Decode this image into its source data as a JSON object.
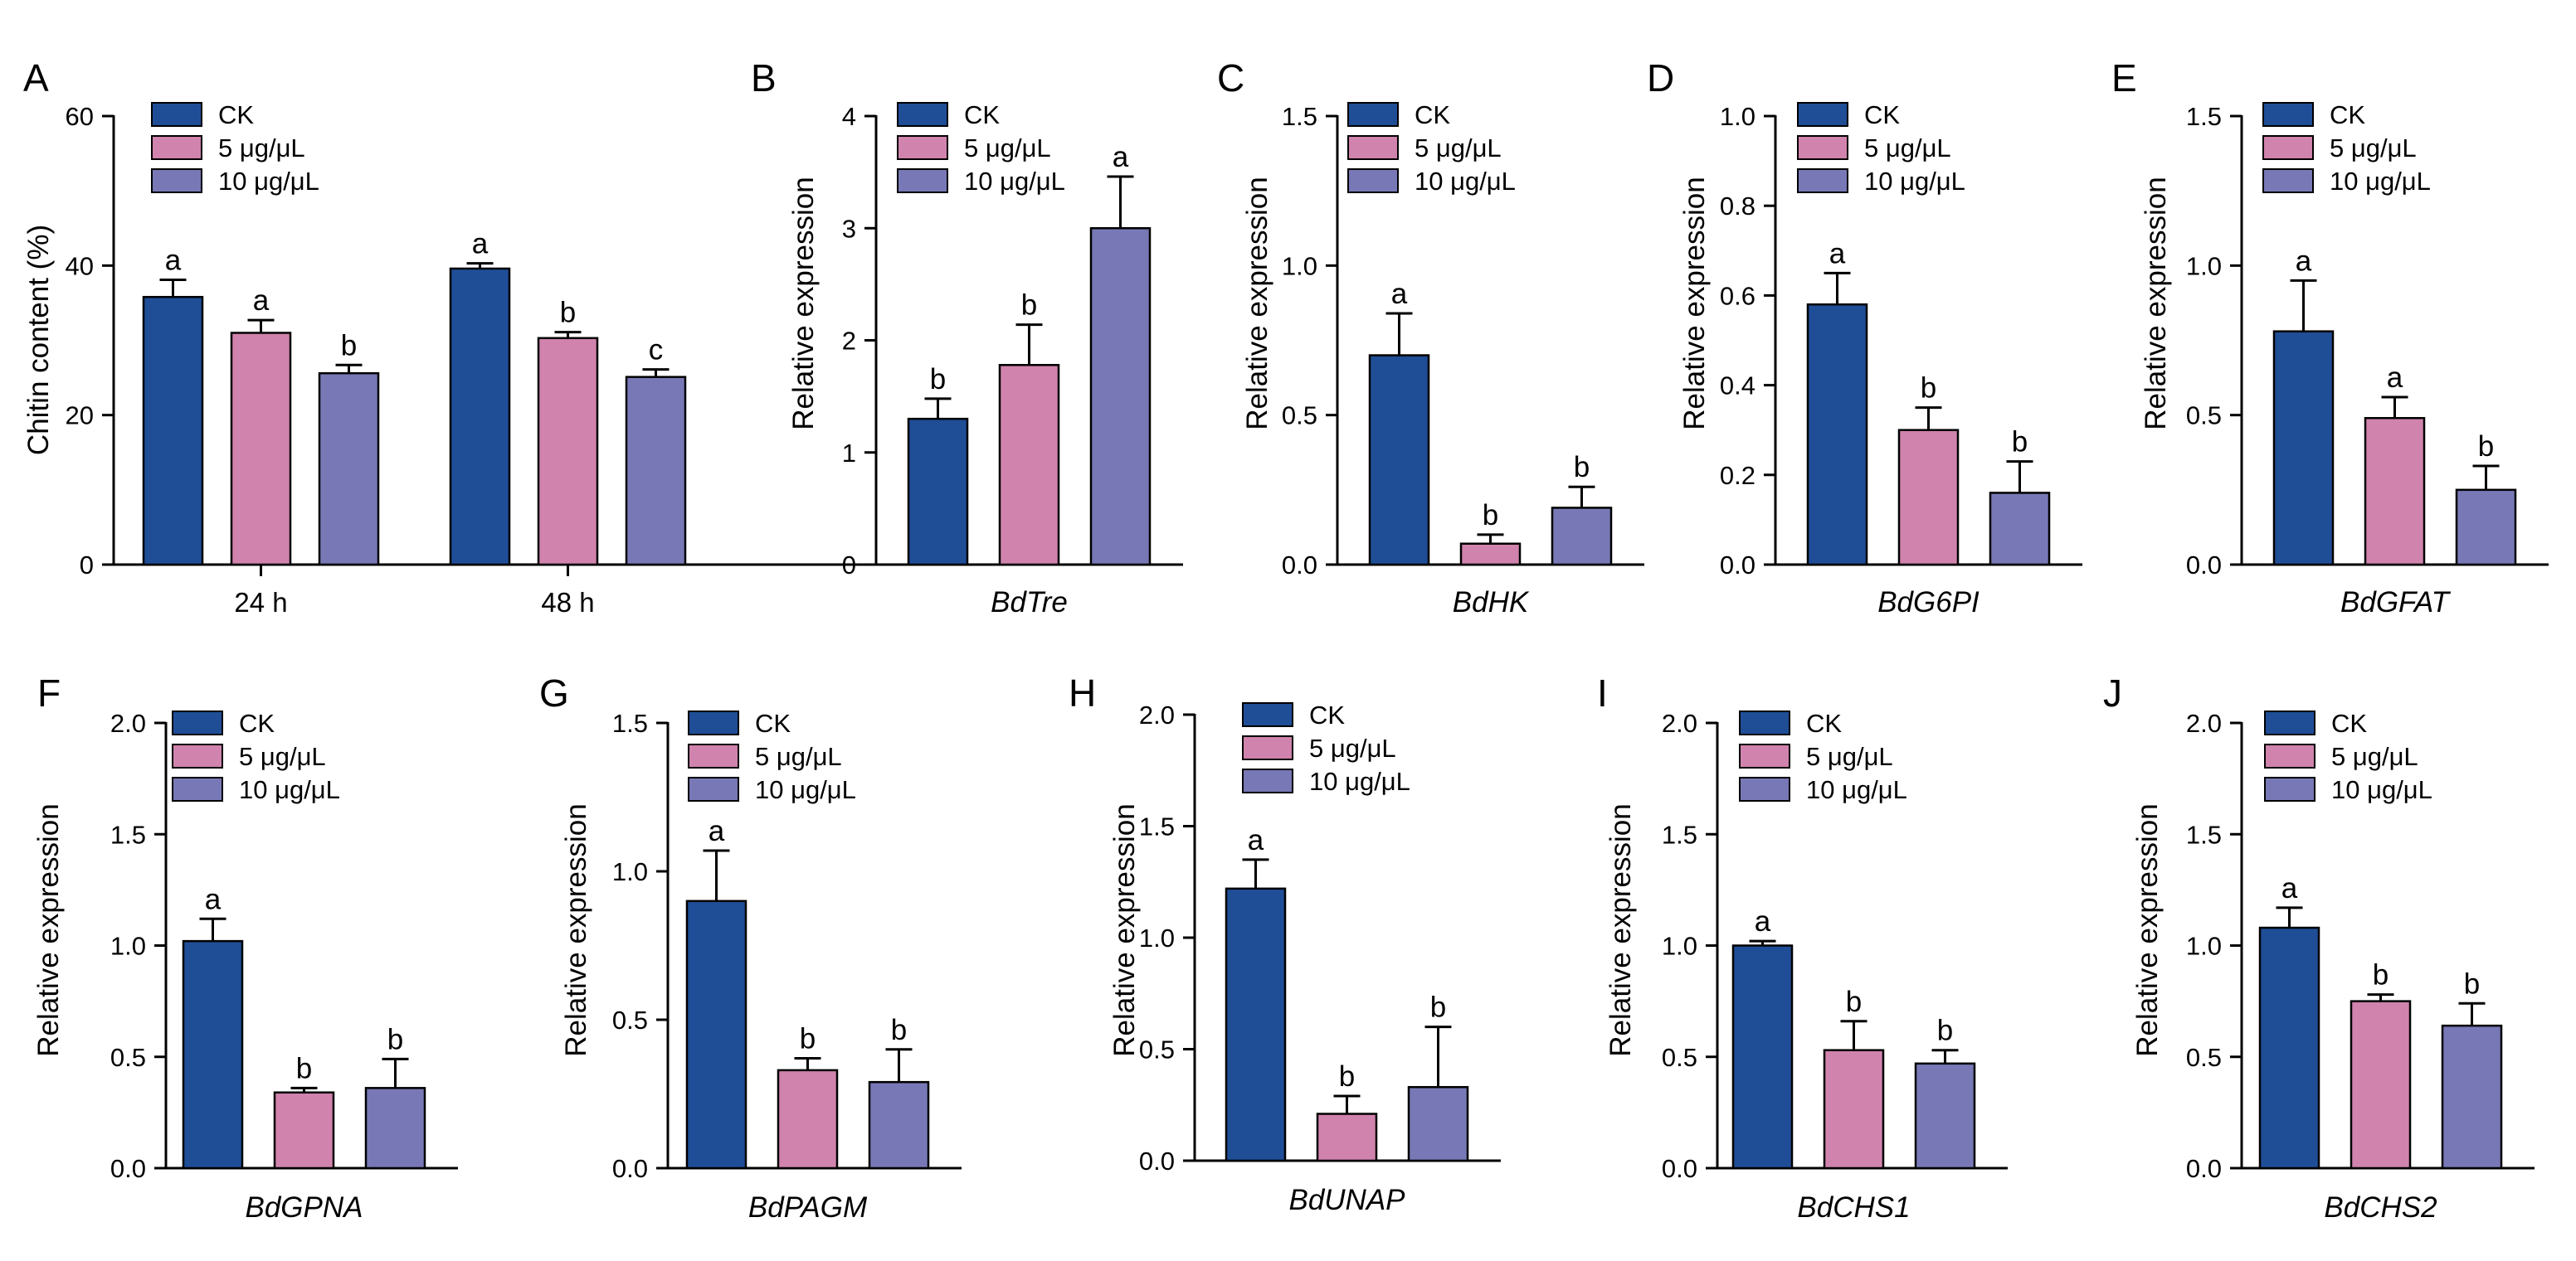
{
  "colors": {
    "ck": "#1f4e97",
    "low": "#d083ad",
    "high": "#7878b6",
    "ink": "#000000"
  },
  "legend": [
    "CK",
    "5 μg/μL",
    "10 μg/μL"
  ],
  "chart_data": [
    {
      "panel": "A",
      "type": "bar",
      "title": "",
      "xlabel": "",
      "ylabel": "Chitin content (%)",
      "ylim": [
        0,
        60
      ],
      "ticks": [
        0,
        20,
        40,
        60
      ],
      "tick_labels": [
        "0",
        "20",
        "40",
        "60"
      ],
      "categories": [
        "24 h",
        "48 h"
      ],
      "series": [
        {
          "name": "CK",
          "values": [
            35.8,
            39.6
          ],
          "errors": [
            2.3,
            0.7
          ],
          "letters": [
            "a",
            "a"
          ]
        },
        {
          "name": "5 μg/μL",
          "values": [
            31.0,
            30.3
          ],
          "errors": [
            1.7,
            0.8
          ],
          "letters": [
            "a",
            "b"
          ]
        },
        {
          "name": "10 μg/μL",
          "values": [
            25.6,
            25.1
          ],
          "errors": [
            1.1,
            1.0
          ],
          "letters": [
            "b",
            "c"
          ]
        }
      ]
    },
    {
      "panel": "B",
      "type": "bar",
      "gene": "BdTre",
      "ylabel": "Relative expression",
      "ylim": [
        0,
        4
      ],
      "ticks": [
        0,
        1,
        2,
        3,
        4
      ],
      "tick_labels": [
        "0",
        "1",
        "2",
        "3",
        "4"
      ],
      "categories": [
        "CK",
        "5 μg/μL",
        "10 μg/μL"
      ],
      "values": [
        1.3,
        1.78,
        3.0
      ],
      "errors": [
        0.18,
        0.36,
        0.46
      ],
      "letters": [
        "b",
        "b",
        "a"
      ]
    },
    {
      "panel": "C",
      "type": "bar",
      "gene": "BdHK",
      "ylabel": "Relative expression",
      "ylim": [
        0,
        1.5
      ],
      "ticks": [
        0,
        0.5,
        1.0,
        1.5
      ],
      "tick_labels": [
        "0.0",
        "0.5",
        "1.0",
        "1.5"
      ],
      "categories": [
        "CK",
        "5 μg/μL",
        "10 μg/μL"
      ],
      "values": [
        0.7,
        0.07,
        0.19
      ],
      "errors": [
        0.14,
        0.03,
        0.07
      ],
      "letters": [
        "a",
        "b",
        "b"
      ]
    },
    {
      "panel": "D",
      "type": "bar",
      "gene": "BdG6PI",
      "ylabel": "Relative expression",
      "ylim": [
        0,
        1.0
      ],
      "ticks": [
        0,
        0.2,
        0.4,
        0.6,
        0.8,
        1.0
      ],
      "tick_labels": [
        "0.0",
        "0.2",
        "0.4",
        "0.6",
        "0.8",
        "1.0"
      ],
      "categories": [
        "CK",
        "5 μg/μL",
        "10 μg/μL"
      ],
      "values": [
        0.58,
        0.3,
        0.16
      ],
      "errors": [
        0.07,
        0.05,
        0.07
      ],
      "letters": [
        "a",
        "b",
        "b"
      ]
    },
    {
      "panel": "E",
      "type": "bar",
      "gene": "BdGFAT",
      "ylabel": "Relative expression",
      "ylim": [
        0,
        1.5
      ],
      "ticks": [
        0,
        0.5,
        1.0,
        1.5
      ],
      "tick_labels": [
        "0.0",
        "0.5",
        "1.0",
        "1.5"
      ],
      "categories": [
        "CK",
        "5 μg/μL",
        "10 μg/μL"
      ],
      "values": [
        0.78,
        0.49,
        0.25
      ],
      "errors": [
        0.17,
        0.07,
        0.08
      ],
      "letters": [
        "a",
        "a",
        "b"
      ]
    },
    {
      "panel": "F",
      "type": "bar",
      "gene": "BdGPNA",
      "ylabel": "Relative expression",
      "ylim": [
        0,
        2.0
      ],
      "ticks": [
        0,
        0.5,
        1.0,
        1.5,
        2.0
      ],
      "tick_labels": [
        "0.0",
        "0.5",
        "1.0",
        "1.5",
        "2.0"
      ],
      "categories": [
        "CK",
        "5 μg/μL",
        "10 μg/μL"
      ],
      "values": [
        1.02,
        0.34,
        0.36
      ],
      "errors": [
        0.1,
        0.02,
        0.13
      ],
      "letters": [
        "a",
        "b",
        "b"
      ]
    },
    {
      "panel": "G",
      "type": "bar",
      "gene": "BdPAGM",
      "ylabel": "Relative expression",
      "ylim": [
        0,
        1.5
      ],
      "ticks": [
        0,
        0.5,
        1.0,
        1.5
      ],
      "tick_labels": [
        "0.0",
        "0.5",
        "1.0",
        "1.5"
      ],
      "categories": [
        "CK",
        "5 μg/μL",
        "10 μg/μL"
      ],
      "values": [
        0.9,
        0.33,
        0.29
      ],
      "errors": [
        0.17,
        0.04,
        0.11
      ],
      "letters": [
        "a",
        "b",
        "b"
      ]
    },
    {
      "panel": "H",
      "type": "bar",
      "gene": "BdUNAP",
      "ylabel": "Relative expression",
      "ylim": [
        0,
        2.0
      ],
      "ticks": [
        0,
        0.5,
        1.0,
        1.5,
        2.0
      ],
      "tick_labels": [
        "0.0",
        "0.5",
        "1.0",
        "1.5",
        "2.0"
      ],
      "categories": [
        "CK",
        "5 μg/μL",
        "10 μg/μL"
      ],
      "values": [
        1.22,
        0.21,
        0.33
      ],
      "errors": [
        0.13,
        0.08,
        0.27
      ],
      "letters": [
        "a",
        "b",
        "b"
      ]
    },
    {
      "panel": "I",
      "type": "bar",
      "gene": "BdCHS1",
      "ylabel": "Relative expression",
      "ylim": [
        0,
        2.0
      ],
      "ticks": [
        0,
        0.5,
        1.0,
        1.5,
        2.0
      ],
      "tick_labels": [
        "0.0",
        "0.5",
        "1.0",
        "1.5",
        "2.0"
      ],
      "categories": [
        "CK",
        "5 μg/μL",
        "10 μg/μL"
      ],
      "values": [
        1.0,
        0.53,
        0.47
      ],
      "errors": [
        0.02,
        0.13,
        0.06
      ],
      "letters": [
        "a",
        "b",
        "b"
      ]
    },
    {
      "panel": "J",
      "type": "bar",
      "gene": "BdCHS2",
      "ylabel": "Relative expression",
      "ylim": [
        0,
        2.0
      ],
      "ticks": [
        0,
        0.5,
        1.0,
        1.5,
        2.0
      ],
      "tick_labels": [
        "0.0",
        "0.5",
        "1.0",
        "1.5",
        "2.0"
      ],
      "categories": [
        "CK",
        "5 μg/μL",
        "10 μg/μL"
      ],
      "values": [
        1.08,
        0.75,
        0.64
      ],
      "errors": [
        0.09,
        0.03,
        0.1
      ],
      "letters": [
        "a",
        "b",
        "b"
      ]
    }
  ]
}
